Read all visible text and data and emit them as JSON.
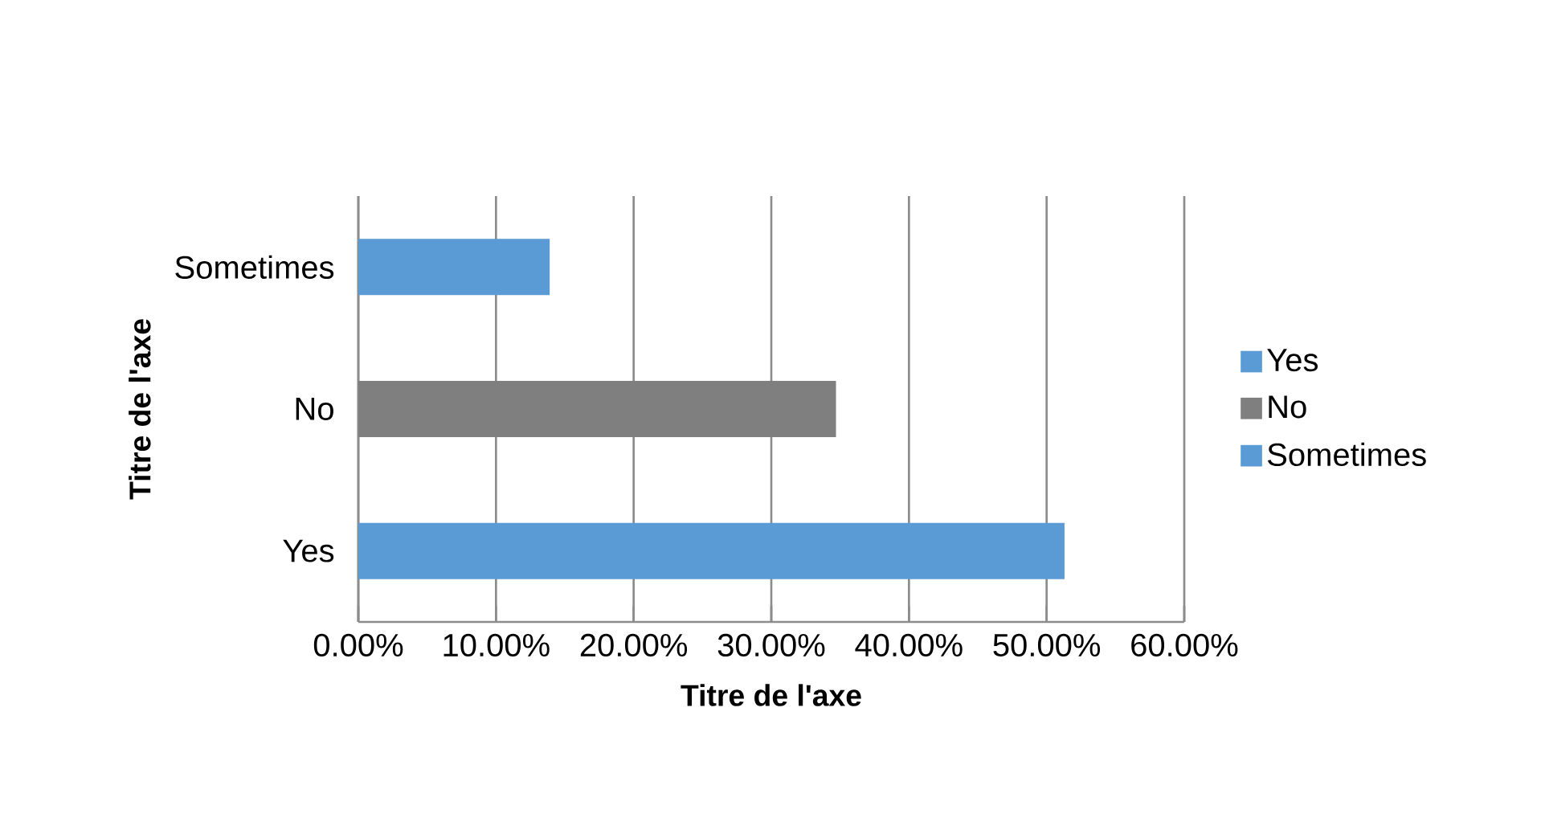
{
  "chart_data": {
    "type": "bar",
    "orientation": "horizontal",
    "xlabel": "Titre de l'axe",
    "ylabel": "Titre de l'axe",
    "categories": [
      "Sometimes",
      "No",
      "Yes"
    ],
    "series": [
      {
        "name": "Yes",
        "color": "#5b9bd5",
        "values": [
          null,
          null,
          51.3
        ]
      },
      {
        "name": "No",
        "color": "#7f7f7f",
        "values": [
          null,
          34.7,
          null
        ]
      },
      {
        "name": "Sometimes",
        "color": "#5b9bd5",
        "values": [
          13.9,
          null,
          null
        ]
      }
    ],
    "xlim": [
      0,
      60
    ],
    "xticks": [
      {
        "value": 0,
        "label": "0.00%"
      },
      {
        "value": 10,
        "label": "10.00%"
      },
      {
        "value": 20,
        "label": "20.00%"
      },
      {
        "value": 30,
        "label": "30.00%"
      },
      {
        "value": 40,
        "label": "40.00%"
      },
      {
        "value": 50,
        "label": "50.00%"
      },
      {
        "value": 60,
        "label": "60.00%"
      }
    ],
    "grid": "x",
    "legend": "right"
  }
}
